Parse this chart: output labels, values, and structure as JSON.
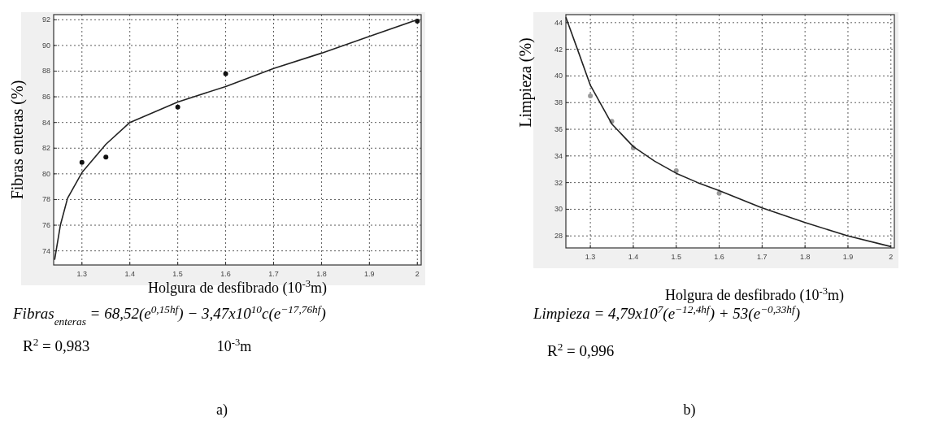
{
  "chart_data": [
    {
      "type": "scatter",
      "xlabel": "Holgura de desfibrado (10$^{-3}$m)",
      "ylabel": "Fibras enteras (%)",
      "xlim": [
        1.241,
        2.008
      ],
      "ylim": [
        72.9,
        92.4
      ],
      "xticks": [
        1.3,
        1.4,
        1.5,
        1.6,
        1.7,
        1.8,
        1.9,
        2
      ],
      "yticks": [
        74,
        76,
        78,
        80,
        82,
        84,
        86,
        88,
        90,
        92
      ],
      "grid": true,
      "series": [
        {
          "type": "scatter",
          "color": "#111111",
          "marker": "circle",
          "x": [
            1.3,
            1.35,
            1.5,
            1.6,
            2.0
          ],
          "values": [
            80.9,
            81.3,
            85.2,
            87.8,
            91.9
          ]
        },
        {
          "type": "line",
          "color": "#222222",
          "line_style": "solid",
          "marker": "none",
          "x": [
            1.243,
            1.255,
            1.27,
            1.3,
            1.35,
            1.4,
            1.5,
            1.6,
            1.7,
            1.8,
            1.9,
            2.0
          ],
          "values": [
            73.3,
            76,
            78.1,
            80.1,
            82.3,
            84.0,
            85.6,
            86.8,
            88.2,
            89.4,
            90.7,
            92.0
          ]
        }
      ],
      "annotations": [
        "Fibras$_{enteras}$ = 68,52(e$^{0,15hf}$) − 3,47x10$^{10}$c(e$^{−17,76hf}$)",
        "R$^{2}$ = 0,983",
        "10$^{-3}$m",
        "a)"
      ]
    },
    {
      "type": "scatter",
      "xlabel": "Holgura de desfibrado (10$^{-3}$m)",
      "ylabel": "Limpieza (%)",
      "xlim": [
        1.243,
        2.008
      ],
      "ylim": [
        27.1,
        44.6
      ],
      "xticks": [
        1.3,
        1.4,
        1.5,
        1.6,
        1.7,
        1.8,
        1.9,
        2
      ],
      "yticks": [
        28,
        30,
        32,
        34,
        36,
        38,
        40,
        42,
        44
      ],
      "grid": true,
      "series": [
        {
          "type": "scatter",
          "color": "#999999",
          "marker": "circle",
          "x": [
            1.3,
            1.35,
            1.4,
            1.5,
            1.6
          ],
          "values": [
            38.5,
            36.6,
            34.6,
            32.9,
            31.2
          ]
        },
        {
          "type": "line",
          "color": "#222222",
          "line_style": "solid",
          "marker": "none",
          "x": [
            1.243,
            1.27,
            1.3,
            1.35,
            1.4,
            1.45,
            1.5,
            1.55,
            1.6,
            1.7,
            1.8,
            1.9,
            2.0
          ],
          "values": [
            44.4,
            42,
            39.3,
            36.4,
            34.7,
            33.6,
            32.7,
            32.0,
            31.4,
            30.1,
            29.0,
            28.0,
            27.2
          ]
        }
      ],
      "annotations": [
        "Limpieza = 4,79x10$^{7}$(e$^{−12,4hf}$) + 53(e$^{−0,33hf}$)",
        "R$^{2}$ = 0,996",
        "b)"
      ]
    }
  ]
}
